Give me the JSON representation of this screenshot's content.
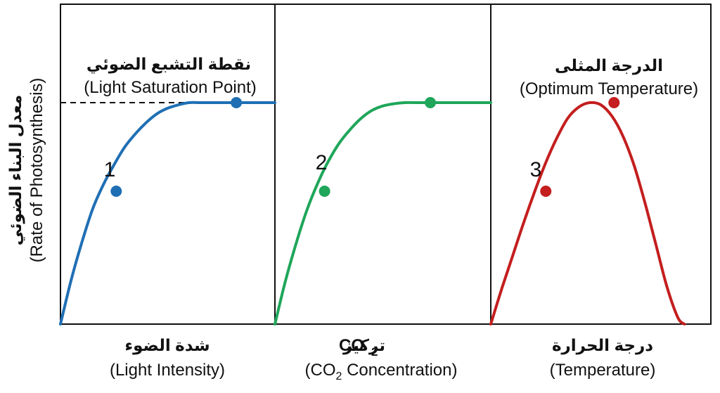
{
  "chart_data": {
    "type": "line",
    "y_axis": {
      "label_ar": "معدل البناء الضوئي",
      "label_en": "(Rate of Photosynthesis)"
    },
    "panels": [
      {
        "id": "light",
        "color": "#1f6fb4",
        "xlabel_ar": "شدة الضوء",
        "xlabel_en": "(Light Intensity)",
        "annotation_ar": "نقطة التشبع الضوئي",
        "annotation_en": "(Light Saturation Point)",
        "dashed_saturation_line": true,
        "marker_label": "1",
        "curve": {
          "x": [
            0,
            0.05,
            0.1,
            0.15,
            0.2,
            0.25,
            0.3,
            0.35,
            0.4,
            0.45,
            0.5,
            0.55,
            0.6,
            0.65,
            0.7,
            0.75,
            0.8,
            1.0
          ],
          "y": [
            0,
            0.2,
            0.37,
            0.52,
            0.63,
            0.72,
            0.8,
            0.86,
            0.91,
            0.95,
            0.975,
            0.99,
            1.0,
            1.0,
            1.0,
            1.0,
            1.0,
            1.0
          ]
        },
        "points": [
          {
            "x": 0.26,
            "y": 0.6
          },
          {
            "x": 0.82,
            "y": 1.0
          }
        ]
      },
      {
        "id": "co2",
        "color": "#1fa65a",
        "xlabel_ar": "تركيز",
        "xlabel_chem": "CO",
        "xlabel_sub": "2",
        "xlabel_en_pre": "(CO",
        "xlabel_en_sub": "2",
        "xlabel_en_post": " Concentration)",
        "marker_label": "2",
        "curve": {
          "x": [
            0,
            0.05,
            0.1,
            0.15,
            0.2,
            0.25,
            0.3,
            0.35,
            0.4,
            0.45,
            0.5,
            0.55,
            0.6,
            0.65,
            0.7,
            0.75,
            1.0
          ],
          "y": [
            0,
            0.2,
            0.37,
            0.52,
            0.64,
            0.74,
            0.82,
            0.88,
            0.93,
            0.965,
            0.985,
            0.995,
            1.0,
            1.0,
            1.0,
            1.0,
            1.0
          ]
        },
        "points": [
          {
            "x": 0.23,
            "y": 0.6
          },
          {
            "x": 0.72,
            "y": 1.0
          }
        ]
      },
      {
        "id": "temp",
        "color": "#c41e1e",
        "xlabel_ar": "درجة الحرارة",
        "xlabel_en": "(Temperature)",
        "annotation_ar": "الدرجة المثلى",
        "annotation_en": "(Optimum Temperature)",
        "marker_label": "3",
        "curve": {
          "x": [
            0,
            0.05,
            0.1,
            0.15,
            0.2,
            0.25,
            0.3,
            0.35,
            0.4,
            0.45,
            0.5,
            0.55,
            0.6,
            0.65,
            0.7,
            0.75,
            0.8,
            0.85,
            0.88
          ],
          "y": [
            0,
            0.16,
            0.31,
            0.46,
            0.6,
            0.73,
            0.84,
            0.93,
            0.98,
            1.0,
            0.99,
            0.94,
            0.85,
            0.72,
            0.55,
            0.36,
            0.17,
            0.03,
            0
          ]
        },
        "points": [
          {
            "x": 0.25,
            "y": 0.6
          },
          {
            "x": 0.56,
            "y": 1.0
          }
        ]
      }
    ]
  }
}
